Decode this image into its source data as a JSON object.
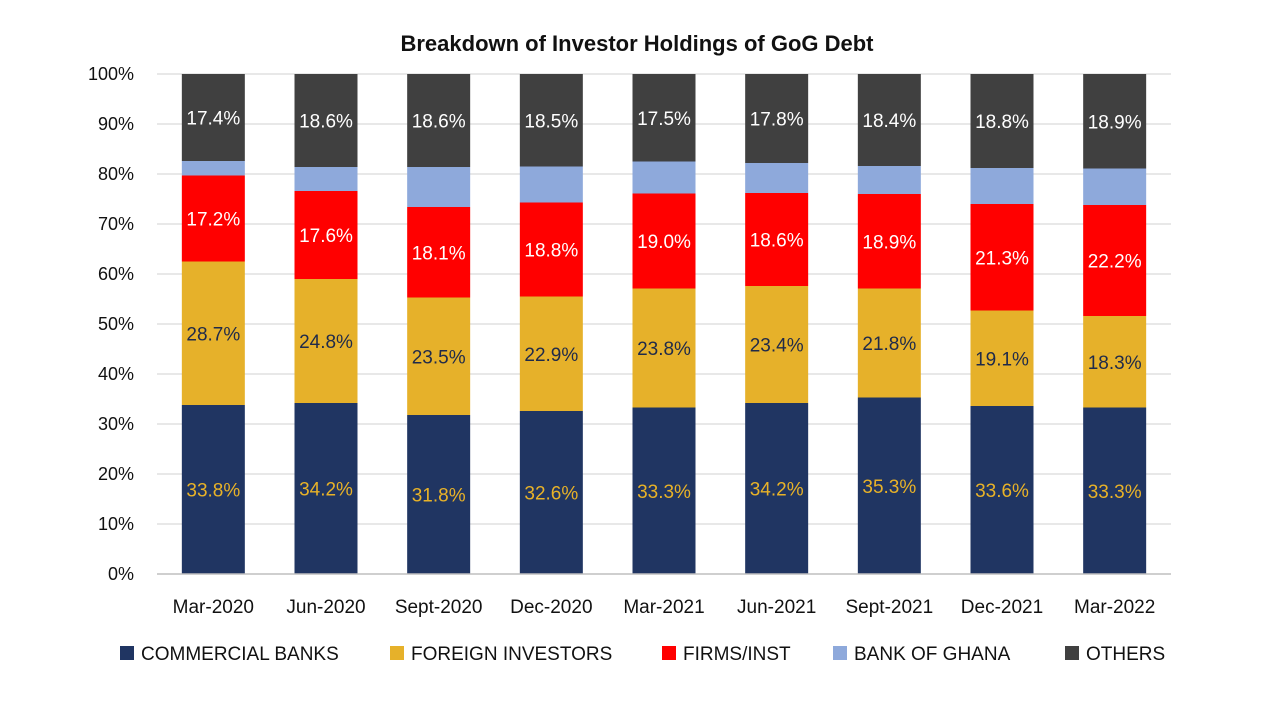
{
  "chart_data": {
    "type": "bar",
    "stacked": true,
    "title": "Breakdown of Investor Holdings of GoG Debt",
    "xlabel": "",
    "ylabel": "",
    "ylim": [
      0,
      100
    ],
    "y_ticks": [
      "0%",
      "10%",
      "20%",
      "30%",
      "40%",
      "50%",
      "60%",
      "70%",
      "80%",
      "90%",
      "100%"
    ],
    "grid": true,
    "legend_position": "bottom",
    "categories": [
      "Mar-2020",
      "Jun-2020",
      "Sept-2020",
      "Dec-2020",
      "Mar-2021",
      "Jun-2021",
      "Sept-2021",
      "Dec-2021",
      "Mar-2022"
    ],
    "series": [
      {
        "name": "COMMERCIAL BANKS",
        "color": "#203562",
        "label_color": "#E8B228",
        "values": [
          33.8,
          34.2,
          31.8,
          32.6,
          33.3,
          34.2,
          35.3,
          33.6,
          33.3
        ],
        "labels": [
          "33.8%",
          "34.2%",
          "31.8%",
          "32.6%",
          "33.3%",
          "34.2%",
          "35.3%",
          "33.6%",
          "33.3%"
        ],
        "show_labels": true
      },
      {
        "name": "FOREIGN INVESTORS",
        "color": "#E6B12A",
        "label_color": "#1F2A4A",
        "values": [
          28.7,
          24.8,
          23.5,
          22.9,
          23.8,
          23.4,
          21.8,
          19.1,
          18.3
        ],
        "labels": [
          "28.7%",
          "24.8%",
          "23.5%",
          "22.9%",
          "23.8%",
          "23.4%",
          "21.8%",
          "19.1%",
          "18.3%"
        ],
        "show_labels": true
      },
      {
        "name": "FIRMS/INST",
        "color": "#FF0000",
        "label_color": "#FFFFFF",
        "values": [
          17.2,
          17.6,
          18.1,
          18.8,
          19.0,
          18.6,
          18.9,
          21.3,
          22.2
        ],
        "labels": [
          "17.2%",
          "17.6%",
          "18.1%",
          "18.8%",
          "19.0%",
          "18.6%",
          "18.9%",
          "21.3%",
          "22.2%"
        ],
        "show_labels": true
      },
      {
        "name": "BANK OF GHANA",
        "color": "#8EA9DB",
        "label_color": "#1F2A4A",
        "values": [
          2.9,
          4.8,
          8.0,
          7.2,
          6.4,
          6.0,
          5.6,
          7.2,
          7.3
        ],
        "labels": [],
        "show_labels": false
      },
      {
        "name": "OTHERS",
        "color": "#404040",
        "label_color": "#FFFFFF",
        "values": [
          17.4,
          18.6,
          18.6,
          18.5,
          17.5,
          17.8,
          18.4,
          18.8,
          18.9
        ],
        "labels": [
          "17.4%",
          "18.6%",
          "18.6%",
          "18.5%",
          "17.5%",
          "17.8%",
          "18.4%",
          "18.8%",
          "18.9%"
        ],
        "show_labels": true
      }
    ]
  }
}
